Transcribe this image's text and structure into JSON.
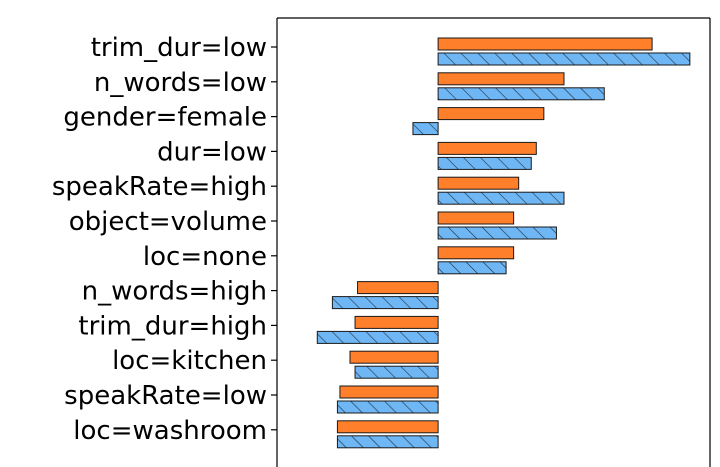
{
  "chart_data": {
    "type": "bar",
    "orientation": "horizontal",
    "categories": [
      "trim_dur=low",
      "n_words=low",
      "gender=female",
      "dur=low",
      "speakRate=high",
      "object=volume",
      "loc=none",
      "n_words=high",
      "trim_dur=high",
      "loc=kitchen",
      "speakRate=low",
      "loc=washroom"
    ],
    "series": [
      {
        "values": [
          0.85,
          0.5,
          0.42,
          0.39,
          0.32,
          0.3,
          0.3,
          -0.32,
          -0.33,
          -0.35,
          -0.39,
          -0.4
        ],
        "color": "#ff7f2a",
        "hatch": false
      },
      {
        "values": [
          1.0,
          0.66,
          -0.1,
          0.37,
          0.5,
          0.47,
          0.27,
          -0.42,
          -0.48,
          -0.33,
          -0.4,
          -0.4
        ],
        "color": "#6fb6f5",
        "hatch": true
      }
    ],
    "xlim": [
      -0.64,
      1.08
    ],
    "zero_line": 0,
    "grid": false,
    "legend": "none",
    "title": "",
    "xlabel": "",
    "ylabel": ""
  }
}
